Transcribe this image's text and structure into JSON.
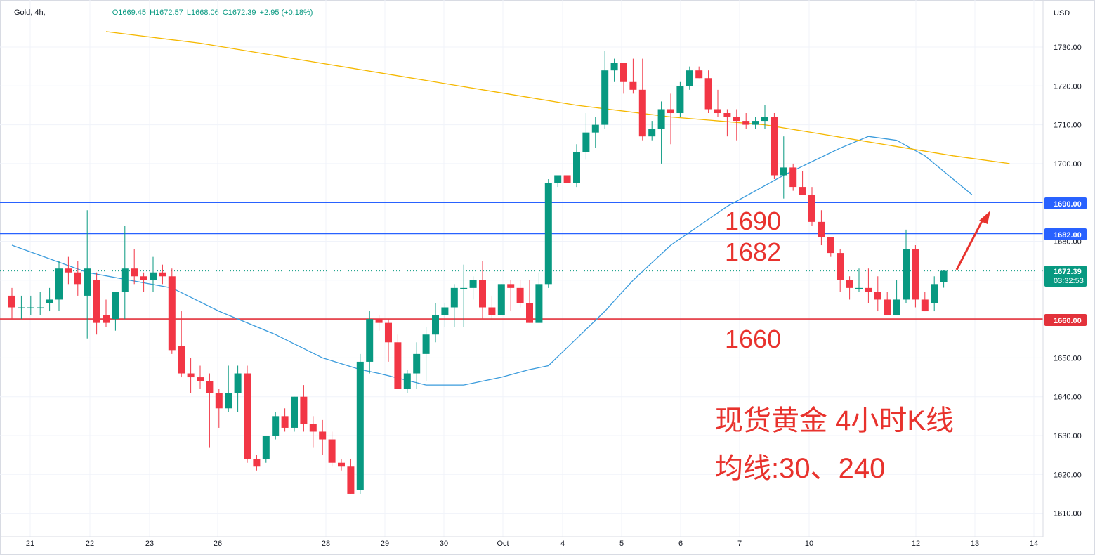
{
  "header": {
    "symbol": "Gold, 4h,",
    "open": "O1669.45",
    "high": "H1672.57",
    "low": "L1668.06",
    "close": "C1672.39",
    "change": "+2.95 (+0.18%)"
  },
  "axis": {
    "currency": "USD"
  },
  "colors": {
    "up": "#089981",
    "down": "#f23645",
    "ma30": "#3a9bdc",
    "ma240": "#f5b800",
    "support": "#e3323b",
    "resistance": "#2962ff",
    "annotation": "#e8322d"
  },
  "annotations": {
    "level_1690": "1690",
    "level_1682": "1682",
    "level_1660": "1660",
    "title_line1": "现货黄金 4小时K线",
    "title_line2": "均线:30、240"
  },
  "price_tags": {
    "h1690": "1690.00",
    "h1682": "1682.00",
    "h1660": "1660.00",
    "current": "1672.39",
    "countdown": "03:32:53"
  },
  "chart_data": {
    "type": "candlestick",
    "instrument": "Gold",
    "timeframe": "4h",
    "ylim": [
      1604,
      1736
    ],
    "y_ticks": [
      1610,
      1620,
      1630,
      1640,
      1650,
      1660,
      1670,
      1680,
      1690,
      1700,
      1710,
      1720,
      1730
    ],
    "x_labels": [
      "21",
      "22",
      "23",
      "26",
      "28",
      "29",
      "30",
      "Oct",
      "4",
      "5",
      "6",
      "7",
      "10",
      "12",
      "13",
      "14"
    ],
    "horizontal_levels": [
      1690,
      1682,
      1660
    ],
    "last_price": 1672.39,
    "ohlc": [
      [
        1666,
        1668,
        1660,
        1663
      ],
      [
        1663,
        1666,
        1660,
        1663
      ],
      [
        1663,
        1666,
        1661,
        1663
      ],
      [
        1663,
        1667,
        1661,
        1663
      ],
      [
        1664,
        1668,
        1662,
        1665
      ],
      [
        1665,
        1675,
        1662,
        1673
      ],
      [
        1673,
        1676,
        1669,
        1672
      ],
      [
        1672,
        1675,
        1666,
        1669
      ],
      [
        1666,
        1688,
        1655,
        1673
      ],
      [
        1670,
        1672,
        1656,
        1659
      ],
      [
        1661,
        1665,
        1658,
        1659
      ],
      [
        1660,
        1667,
        1657,
        1667
      ],
      [
        1667,
        1684,
        1660,
        1673
      ],
      [
        1673,
        1678,
        1669,
        1671
      ],
      [
        1671,
        1672,
        1667,
        1670
      ],
      [
        1670,
        1676,
        1667,
        1672
      ],
      [
        1672,
        1674,
        1669,
        1671
      ],
      [
        1671,
        1673,
        1651,
        1652
      ],
      [
        1653,
        1662,
        1645,
        1646
      ],
      [
        1646,
        1650,
        1641,
        1645
      ],
      [
        1645,
        1648,
        1642,
        1644
      ],
      [
        1644,
        1646,
        1627,
        1641
      ],
      [
        1641,
        1642,
        1632,
        1637
      ],
      [
        1637,
        1648,
        1636,
        1641
      ],
      [
        1641,
        1648,
        1636,
        1646
      ],
      [
        1646,
        1648,
        1623,
        1624
      ],
      [
        1624,
        1625,
        1621,
        1622
      ],
      [
        1624,
        1630,
        1623,
        1630
      ],
      [
        1630,
        1636,
        1629,
        1635
      ],
      [
        1635,
        1637,
        1631,
        1632
      ],
      [
        1632,
        1640,
        1631,
        1640
      ],
      [
        1640,
        1643,
        1631,
        1633
      ],
      [
        1633,
        1635,
        1627,
        1631
      ],
      [
        1631,
        1634,
        1625,
        1629
      ],
      [
        1629,
        1631,
        1622,
        1623
      ],
      [
        1623,
        1624,
        1621,
        1622
      ],
      [
        1622,
        1624,
        1615,
        1615
      ],
      [
        1616,
        1651,
        1615,
        1649
      ],
      [
        1649,
        1662,
        1646,
        1660
      ],
      [
        1660,
        1661,
        1657,
        1659
      ],
      [
        1659,
        1660,
        1649,
        1654
      ],
      [
        1654,
        1656,
        1642,
        1642
      ],
      [
        1642,
        1647,
        1641,
        1646
      ],
      [
        1646,
        1654,
        1642,
        1651
      ],
      [
        1651,
        1658,
        1644,
        1656
      ],
      [
        1656,
        1664,
        1654,
        1661
      ],
      [
        1661,
        1664,
        1658,
        1663
      ],
      [
        1663,
        1669,
        1658,
        1668
      ],
      [
        1668,
        1674,
        1658,
        1668
      ],
      [
        1668,
        1671,
        1665,
        1670
      ],
      [
        1670,
        1675,
        1660,
        1663
      ],
      [
        1663,
        1666,
        1660,
        1661
      ],
      [
        1661,
        1669,
        1662,
        1669
      ],
      [
        1669,
        1670,
        1662,
        1668
      ],
      [
        1668,
        1670,
        1663,
        1664
      ],
      [
        1664,
        1670,
        1659,
        1659
      ],
      [
        1659,
        1672,
        1659,
        1669
      ],
      [
        1669,
        1696,
        1668,
        1695
      ],
      [
        1695,
        1697,
        1694,
        1697
      ],
      [
        1697,
        1697,
        1695,
        1695
      ],
      [
        1695,
        1705,
        1694,
        1703
      ],
      [
        1703,
        1713,
        1701,
        1708
      ],
      [
        1708,
        1712,
        1704,
        1710
      ],
      [
        1710,
        1729,
        1709,
        1724
      ],
      [
        1724,
        1727,
        1721,
        1726
      ],
      [
        1726,
        1726,
        1718,
        1721
      ],
      [
        1721,
        1727,
        1718,
        1719
      ],
      [
        1719,
        1727,
        1706,
        1707
      ],
      [
        1707,
        1711,
        1706,
        1709
      ],
      [
        1709,
        1716,
        1700,
        1714
      ],
      [
        1714,
        1718,
        1705,
        1713
      ],
      [
        1713,
        1721,
        1712,
        1720
      ],
      [
        1720,
        1725,
        1719,
        1724
      ],
      [
        1724,
        1725,
        1722,
        1722
      ],
      [
        1722,
        1724,
        1713,
        1714
      ],
      [
        1714,
        1719,
        1712,
        1713
      ],
      [
        1713,
        1714,
        1707,
        1712
      ],
      [
        1712,
        1714,
        1706,
        1711
      ],
      [
        1711,
        1713,
        1709,
        1710
      ],
      [
        1710,
        1712,
        1709,
        1711
      ],
      [
        1711,
        1715,
        1709,
        1712
      ],
      [
        1712,
        1713,
        1696,
        1697
      ],
      [
        1697,
        1707,
        1691,
        1699
      ],
      [
        1699,
        1700,
        1693,
        1694
      ],
      [
        1694,
        1698,
        1692,
        1692
      ],
      [
        1692,
        1694,
        1684,
        1685
      ],
      [
        1685,
        1688,
        1679,
        1681
      ],
      [
        1681,
        1681,
        1676,
        1677
      ],
      [
        1677,
        1678,
        1667,
        1670
      ],
      [
        1670,
        1671,
        1665,
        1668
      ],
      [
        1668,
        1673,
        1667,
        1668
      ],
      [
        1668,
        1673,
        1664,
        1667
      ],
      [
        1667,
        1671,
        1662,
        1665
      ],
      [
        1665,
        1667,
        1661,
        1661
      ],
      [
        1661,
        1670,
        1661,
        1665
      ],
      [
        1665,
        1683,
        1664,
        1678
      ],
      [
        1678,
        1679,
        1663,
        1665
      ],
      [
        1665,
        1667,
        1662,
        1662
      ],
      [
        1664,
        1671,
        1662,
        1669
      ],
      [
        1669.45,
        1672.57,
        1668.06,
        1672.39
      ]
    ],
    "series": [
      {
        "name": "MA30",
        "color": "#3a9bdc",
        "points": [
          [
            0,
            1679
          ],
          [
            8,
            1672
          ],
          [
            17,
            1668
          ],
          [
            22,
            1662
          ],
          [
            28,
            1656
          ],
          [
            33,
            1650
          ],
          [
            37,
            1647
          ],
          [
            39,
            1646
          ],
          [
            44,
            1643
          ],
          [
            48,
            1643
          ],
          [
            52,
            1645
          ],
          [
            55,
            1647
          ],
          [
            57,
            1648
          ],
          [
            60,
            1655
          ],
          [
            63,
            1662
          ],
          [
            66,
            1670
          ],
          [
            70,
            1679
          ],
          [
            76,
            1689
          ],
          [
            82,
            1697
          ],
          [
            88,
            1704
          ],
          [
            91,
            1707
          ],
          [
            94,
            1706
          ],
          [
            97,
            1702
          ],
          [
            100,
            1696
          ],
          [
            102,
            1692
          ]
        ]
      },
      {
        "name": "MA240",
        "color": "#f5b800",
        "points": [
          [
            10,
            1734
          ],
          [
            20,
            1731
          ],
          [
            30,
            1727
          ],
          [
            40,
            1723
          ],
          [
            50,
            1719
          ],
          [
            60,
            1715
          ],
          [
            70,
            1712
          ],
          [
            80,
            1710
          ],
          [
            90,
            1706
          ],
          [
            100,
            1702
          ],
          [
            106,
            1700
          ]
        ]
      }
    ]
  }
}
